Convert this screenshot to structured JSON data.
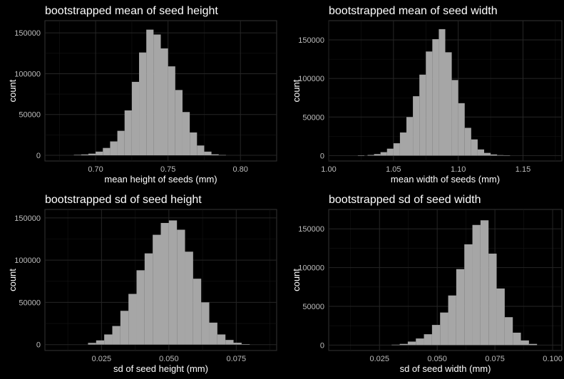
{
  "figure": {
    "background": "#000000",
    "bar_color": "#a6a6a6",
    "grid_color": "#262626",
    "text_color": "#ffffff",
    "tick_color": "#bdbdbd"
  },
  "chart_data": [
    {
      "type": "bar",
      "title": "bootstrapped mean of seed height",
      "xlabel": "mean height of seeds (mm)",
      "ylabel": "count",
      "xlim": [
        0.665,
        0.825
      ],
      "ylim": [
        -7000,
        165000
      ],
      "xticks": [
        0.7,
        0.75,
        0.8
      ],
      "xtick_labels": [
        "0.70",
        "0.75",
        "0.80"
      ],
      "yticks": [
        0,
        50000,
        100000,
        150000
      ],
      "ytick_labels": [
        "0",
        "50000",
        "100000",
        "150000"
      ],
      "grid": true,
      "bins": {
        "x": [
          0.6875,
          0.6925,
          0.6975,
          0.7025,
          0.7075,
          0.7125,
          0.7175,
          0.7225,
          0.7275,
          0.7325,
          0.7375,
          0.7425,
          0.7475,
          0.7525,
          0.7575,
          0.7625,
          0.7675,
          0.7725,
          0.7775,
          0.7825,
          0.7875
        ],
        "counts": [
          500,
          1000,
          2000,
          4500,
          9000,
          17000,
          30000,
          55000,
          90000,
          126000,
          154000,
          148000,
          131000,
          109000,
          80000,
          53000,
          28000,
          12000,
          4500,
          1200,
          300
        ]
      }
    },
    {
      "type": "bar",
      "title": "bootstrapped mean of seed width",
      "xlabel": "mean width of seeds (mm)",
      "ylabel": "count",
      "xlim": [
        1.0,
        1.18
      ],
      "ylim": [
        -7000,
        175000
      ],
      "xticks": [
        1.0,
        1.05,
        1.1,
        1.15
      ],
      "xtick_labels": [
        "1.00",
        "1.05",
        "1.10",
        "1.15"
      ],
      "yticks": [
        0,
        50000,
        100000,
        150000
      ],
      "ytick_labels": [
        "0",
        "50000",
        "100000",
        "150000"
      ],
      "grid": true,
      "bins": {
        "x": [
          1.025,
          1.0325,
          1.0375,
          1.0425,
          1.0475,
          1.0525,
          1.0575,
          1.0625,
          1.0675,
          1.0725,
          1.0775,
          1.0825,
          1.0875,
          1.0925,
          1.0975,
          1.1025,
          1.1075,
          1.1125,
          1.1175,
          1.1225,
          1.1275,
          1.1325,
          1.1375
        ],
        "counts": [
          200,
          800,
          2000,
          4500,
          9000,
          16000,
          30000,
          50000,
          77000,
          105000,
          135000,
          151000,
          164000,
          134000,
          98000,
          68000,
          36000,
          21000,
          8000,
          3500,
          1500,
          600,
          200
        ]
      }
    },
    {
      "type": "bar",
      "title": "bootstrapped sd of seed height",
      "xlabel": "sd of seed height (mm)",
      "ylabel": "count",
      "xlim": [
        0.004,
        0.09
      ],
      "ylim": [
        -7000,
        160000
      ],
      "xticks": [
        0.025,
        0.05,
        0.075
      ],
      "xtick_labels": [
        "0.025",
        "0.050",
        "0.075"
      ],
      "yticks": [
        0,
        50000,
        100000,
        150000
      ],
      "ytick_labels": [
        "0",
        "50000",
        "100000",
        "150000"
      ],
      "grid": true,
      "bins": {
        "x": [
          0.0215,
          0.0245,
          0.0275,
          0.0305,
          0.0335,
          0.0365,
          0.0395,
          0.0425,
          0.0455,
          0.0485,
          0.0515,
          0.0545,
          0.0575,
          0.0605,
          0.0635,
          0.0665,
          0.0695,
          0.0725,
          0.0755,
          0.0785
        ],
        "counts": [
          2000,
          5000,
          12000,
          22000,
          40000,
          60000,
          88000,
          108000,
          130000,
          144000,
          147000,
          136000,
          110000,
          78000,
          50000,
          26000,
          12000,
          5500,
          2200,
          500
        ]
      }
    },
    {
      "type": "bar",
      "title": "bootstrapped sd of seed width",
      "xlabel": "sd of seed width (mm)",
      "ylabel": "count",
      "xlim": [
        0.003,
        0.104
      ],
      "ylim": [
        -7000,
        175000
      ],
      "xticks": [
        0.025,
        0.05,
        0.075,
        0.1
      ],
      "xtick_labels": [
        "0.025",
        "0.050",
        "0.075",
        "0.100"
      ],
      "yticks": [
        0,
        50000,
        100000,
        150000
      ],
      "ytick_labels": [
        "0",
        "50000",
        "100000",
        "150000"
      ],
      "grid": true,
      "bins": {
        "x": [
          0.032,
          0.0355,
          0.039,
          0.0425,
          0.046,
          0.0495,
          0.053,
          0.0565,
          0.06,
          0.0635,
          0.067,
          0.0705,
          0.074,
          0.0775,
          0.081,
          0.0845,
          0.088,
          0.0915
        ],
        "counts": [
          500,
          1500,
          4500,
          8500,
          14000,
          26000,
          42000,
          64000,
          98000,
          130000,
          155000,
          161000,
          118000,
          73000,
          36000,
          16000,
          6000,
          1500
        ]
      }
    }
  ]
}
